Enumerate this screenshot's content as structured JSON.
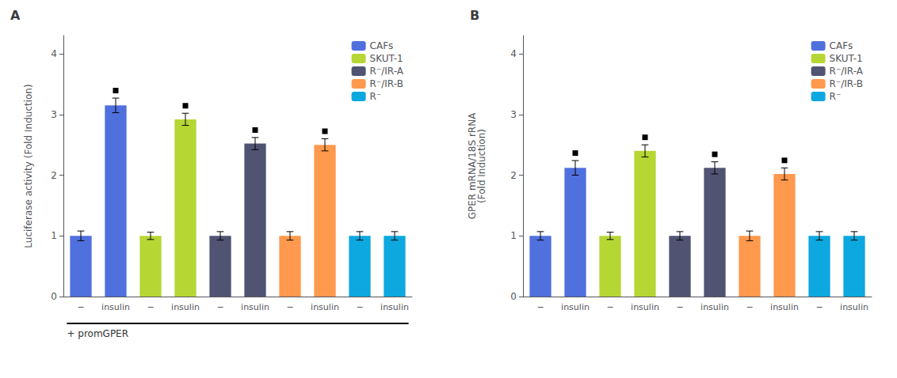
{
  "chart_data": [
    {
      "type": "bar",
      "title": "A",
      "ylabel": "Luciferase activity (Fold Induction)",
      "xlabel": "+ promGPER",
      "categories": [
        "−",
        "insulin",
        "−",
        "insulin",
        "−",
        "insulin",
        "−",
        "insulin",
        "−",
        "insulin"
      ],
      "series": [
        {
          "name": "CAFs",
          "values": [
            1.0,
            3.15,
            null,
            null,
            null,
            null,
            null,
            null,
            null,
            null
          ],
          "errors": [
            0.08,
            0.12,
            null,
            null,
            null,
            null,
            null,
            null,
            null,
            null
          ],
          "significant": [
            false,
            true,
            null,
            null,
            null,
            null,
            null,
            null,
            null,
            null
          ]
        },
        {
          "name": "SKUT-1",
          "values": [
            null,
            null,
            1.0,
            2.92,
            null,
            null,
            null,
            null,
            null,
            null
          ],
          "errors": [
            null,
            null,
            0.06,
            0.1,
            null,
            null,
            null,
            null,
            null,
            null
          ],
          "significant": [
            null,
            null,
            false,
            true,
            null,
            null,
            null,
            null,
            null,
            null
          ]
        },
        {
          "name": "R⁻/IR-A",
          "values": [
            null,
            null,
            null,
            null,
            1.0,
            2.52,
            null,
            null,
            null,
            null
          ],
          "errors": [
            null,
            null,
            null,
            null,
            0.07,
            0.1,
            null,
            null,
            null,
            null
          ],
          "significant": [
            null,
            null,
            null,
            null,
            false,
            true,
            null,
            null,
            null,
            null
          ]
        },
        {
          "name": "R⁻/IR-B",
          "values": [
            null,
            null,
            null,
            null,
            null,
            null,
            1.0,
            2.5,
            null,
            null
          ],
          "errors": [
            null,
            null,
            null,
            null,
            null,
            null,
            0.07,
            0.1,
            null,
            null
          ],
          "significant": [
            null,
            null,
            null,
            null,
            null,
            null,
            false,
            true,
            null,
            null
          ]
        },
        {
          "name": "R⁻",
          "values": [
            null,
            null,
            null,
            null,
            null,
            null,
            null,
            null,
            1.0,
            1.0
          ],
          "errors": [
            null,
            null,
            null,
            null,
            null,
            null,
            null,
            null,
            0.07,
            0.07
          ],
          "significant": [
            null,
            null,
            null,
            null,
            null,
            null,
            null,
            null,
            false,
            false
          ]
        }
      ],
      "ylim": [
        0,
        4.3
      ],
      "yticks": [
        0,
        1,
        2,
        3,
        4
      ],
      "grid": false,
      "legend": "upper right"
    },
    {
      "type": "bar",
      "title": "B",
      "ylabel": "GPER mRNA/18S rRNA\n(Fold Induction)",
      "categories": [
        "−",
        "insulin",
        "−",
        "insulin",
        "−",
        "insulin",
        "−",
        "insulin",
        "−",
        "insulin"
      ],
      "series": [
        {
          "name": "CAFs",
          "values": [
            1.0,
            2.12,
            null,
            null,
            null,
            null,
            null,
            null,
            null,
            null
          ],
          "errors": [
            0.07,
            0.12,
            null,
            null,
            null,
            null,
            null,
            null,
            null,
            null
          ],
          "significant": [
            false,
            true,
            null,
            null,
            null,
            null,
            null,
            null,
            null,
            null
          ]
        },
        {
          "name": "SKUT-1",
          "values": [
            null,
            null,
            1.0,
            2.4,
            null,
            null,
            null,
            null,
            null,
            null
          ],
          "errors": [
            null,
            null,
            0.06,
            0.1,
            null,
            null,
            null,
            null,
            null,
            null
          ],
          "significant": [
            null,
            null,
            false,
            true,
            null,
            null,
            null,
            null,
            null,
            null
          ]
        },
        {
          "name": "R⁻/IR-A",
          "values": [
            null,
            null,
            null,
            null,
            1.0,
            2.12,
            null,
            null,
            null,
            null
          ],
          "errors": [
            null,
            null,
            null,
            null,
            0.07,
            0.1,
            null,
            null,
            null,
            null
          ],
          "significant": [
            null,
            null,
            null,
            null,
            false,
            true,
            null,
            null,
            null,
            null
          ]
        },
        {
          "name": "R⁻/IR-B",
          "values": [
            null,
            null,
            null,
            null,
            null,
            null,
            1.0,
            2.02,
            null,
            null
          ],
          "errors": [
            null,
            null,
            null,
            null,
            null,
            null,
            0.08,
            0.1,
            null,
            null
          ],
          "significant": [
            null,
            null,
            null,
            null,
            null,
            null,
            false,
            true,
            null,
            null
          ]
        },
        {
          "name": "R⁻",
          "values": [
            null,
            null,
            null,
            null,
            null,
            null,
            null,
            null,
            1.0,
            1.0
          ],
          "errors": [
            null,
            null,
            null,
            null,
            null,
            null,
            null,
            null,
            0.07,
            0.07
          ],
          "significant": [
            null,
            null,
            null,
            null,
            null,
            null,
            null,
            null,
            false,
            false
          ]
        }
      ],
      "ylim": [
        0,
        4.3
      ],
      "yticks": [
        0,
        1,
        2,
        3,
        4
      ],
      "grid": false,
      "legend": "upper right"
    }
  ]
}
